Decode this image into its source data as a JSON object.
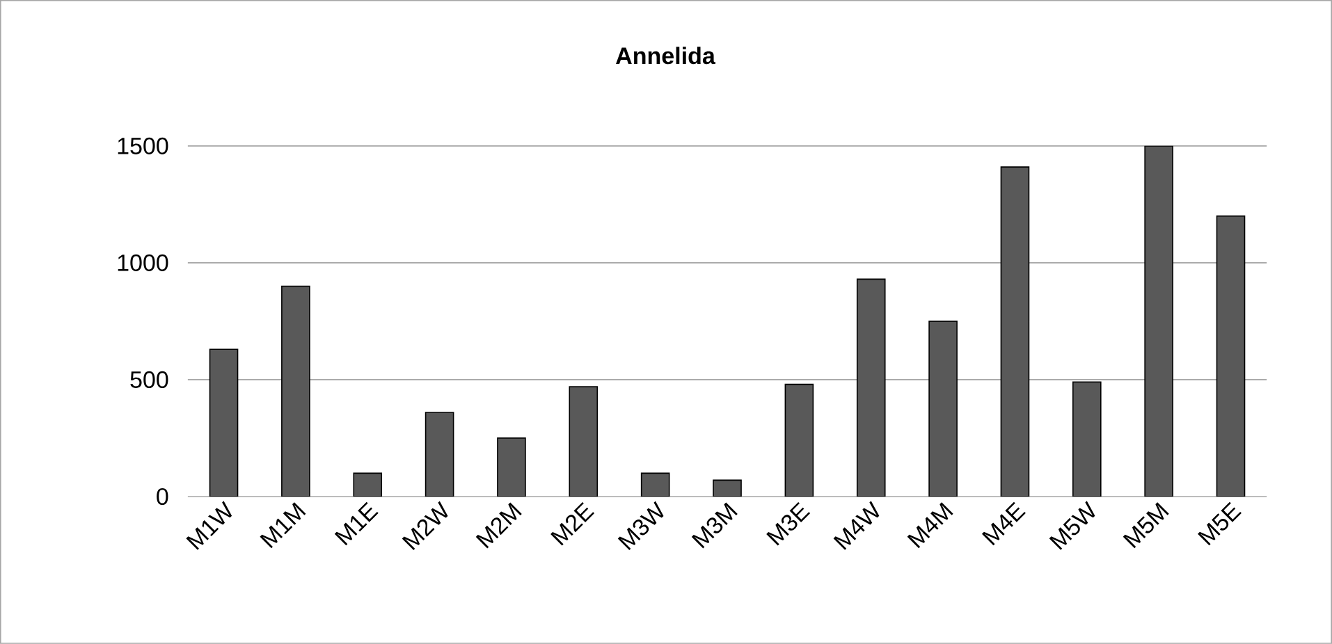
{
  "chart_data": {
    "type": "bar",
    "title": "Annelida",
    "categories": [
      "M1W",
      "M1M",
      "M1E",
      "M2W",
      "M2M",
      "M2E",
      "M3W",
      "M3M",
      "M3E",
      "M4W",
      "M4M",
      "M4E",
      "M5W",
      "M5M",
      "M5E"
    ],
    "values": [
      630,
      900,
      100,
      360,
      250,
      470,
      100,
      70,
      480,
      930,
      750,
      1410,
      490,
      1500,
      1200
    ],
    "color": "#595959",
    "ylim": [
      0,
      1500
    ],
    "yticks": [
      0,
      500,
      1000,
      1500
    ],
    "grid": "y"
  }
}
